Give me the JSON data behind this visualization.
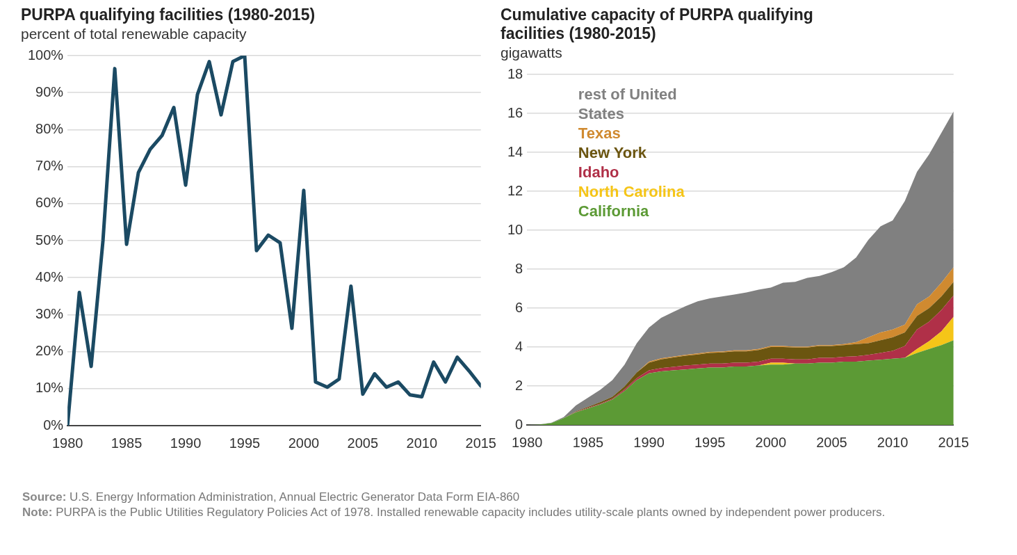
{
  "chart_data": [
    {
      "type": "line",
      "title": "PURPA qualifying facilities (1980-2015)",
      "subtitle": "percent of total renewable capacity",
      "x": [
        1980,
        1981,
        1982,
        1983,
        1984,
        1985,
        1986,
        1987,
        1988,
        1989,
        1990,
        1991,
        1992,
        1993,
        1994,
        1995,
        1996,
        1997,
        1998,
        1999,
        2000,
        2001,
        2002,
        2003,
        2004,
        2005,
        2006,
        2007,
        2008,
        2009,
        2010,
        2011,
        2012,
        2013,
        2014,
        2015
      ],
      "series": [
        {
          "color": "#1b4a63",
          "values": [
            0,
            36,
            16,
            50,
            96.5,
            49,
            68.4,
            74.7,
            78.4,
            86,
            65,
            89.5,
            98.4,
            84,
            98.4,
            100,
            47.3,
            51.5,
            49.4,
            26.3,
            63.6,
            11.8,
            10.4,
            12.6,
            37.7,
            8.5,
            14,
            10.4,
            11.8,
            8.3,
            7.8,
            17.2,
            11.8,
            18.5,
            14.8,
            10.7
          ]
        }
      ],
      "xlim": [
        1980,
        2015
      ],
      "xticks": [
        1980,
        1985,
        1990,
        1995,
        2000,
        2005,
        2010,
        2015
      ],
      "ylim": [
        0,
        100
      ],
      "yticks": [
        {
          "value": 0,
          "label": "0%"
        },
        {
          "value": 10,
          "label": "10%"
        },
        {
          "value": 20,
          "label": "20%"
        },
        {
          "value": 30,
          "label": "30%"
        },
        {
          "value": 40,
          "label": "40%"
        },
        {
          "value": 50,
          "label": "50%"
        },
        {
          "value": 60,
          "label": "60%"
        },
        {
          "value": 70,
          "label": "70%"
        },
        {
          "value": 80,
          "label": "80%"
        },
        {
          "value": 90,
          "label": "90%"
        },
        {
          "value": 100,
          "label": "100%"
        }
      ],
      "grid": "y",
      "marker": "none",
      "line_style": "solid",
      "annotations": [
        "Source: U.S. Energy Information Administration, Annual Electric Generator Data Form EIA-860",
        "Note: PURPA is the Public Utilities Regulatory Policies Act of 1978. Installed renewable capacity includes utility-scale plants owned by independent power producers."
      ]
    },
    {
      "type": "area",
      "title": "Cumulative capacity of PURPA qualifying facilities (1980-2015)",
      "subtitle": "gigawatts",
      "stacked": true,
      "x": [
        1980,
        1981,
        1982,
        1983,
        1984,
        1985,
        1986,
        1987,
        1988,
        1989,
        1990,
        1991,
        1992,
        1993,
        1994,
        1995,
        1996,
        1997,
        1998,
        1999,
        2000,
        2001,
        2002,
        2003,
        2004,
        2005,
        2006,
        2007,
        2008,
        2009,
        2010,
        2011,
        2012,
        2013,
        2014,
        2015
      ],
      "series": [
        {
          "name": "California",
          "color": "#5c9a35",
          "values": [
            0,
            0.02,
            0.1,
            0.35,
            0.65,
            0.85,
            1.05,
            1.3,
            1.75,
            2.3,
            2.65,
            2.75,
            2.8,
            2.85,
            2.9,
            2.95,
            2.95,
            3.0,
            3.0,
            3.05,
            3.1,
            3.1,
            3.15,
            3.15,
            3.2,
            3.2,
            3.25,
            3.25,
            3.3,
            3.35,
            3.4,
            3.45,
            3.7,
            3.9,
            4.1,
            4.35
          ]
        },
        {
          "name": "North Carolina",
          "color": "#f5c518",
          "values": [
            0,
            0,
            0,
            0,
            0,
            0,
            0,
            0,
            0,
            0,
            0,
            0,
            0,
            0,
            0,
            0,
            0,
            0,
            0,
            0,
            0.1,
            0.1,
            0,
            0,
            0,
            0,
            0,
            0,
            0,
            0,
            0,
            0,
            0.2,
            0.4,
            0.7,
            1.2
          ]
        },
        {
          "name": "Idaho",
          "color": "#b03048",
          "values": [
            0,
            0,
            0,
            0,
            0.02,
            0.03,
            0.04,
            0.05,
            0.08,
            0.1,
            0.15,
            0.17,
            0.18,
            0.2,
            0.2,
            0.2,
            0.2,
            0.2,
            0.2,
            0.2,
            0.2,
            0.2,
            0.22,
            0.22,
            0.25,
            0.25,
            0.25,
            0.28,
            0.3,
            0.35,
            0.4,
            0.6,
            1.0,
            1.0,
            1.1,
            1.1
          ]
        },
        {
          "name": "New York",
          "color": "#6b5510",
          "values": [
            0,
            0,
            0,
            0,
            0.03,
            0.05,
            0.08,
            0.1,
            0.15,
            0.3,
            0.4,
            0.45,
            0.48,
            0.5,
            0.52,
            0.55,
            0.57,
            0.58,
            0.58,
            0.6,
            0.6,
            0.6,
            0.6,
            0.6,
            0.6,
            0.6,
            0.6,
            0.62,
            0.6,
            0.65,
            0.7,
            0.7,
            0.7,
            0.7,
            0.7,
            0.7
          ]
        },
        {
          "name": "Texas",
          "color": "#d08a30",
          "values": [
            0,
            0,
            0,
            0,
            0,
            0,
            0,
            0,
            0,
            0,
            0.05,
            0.05,
            0.05,
            0.05,
            0.05,
            0.05,
            0.05,
            0.05,
            0.05,
            0.05,
            0.05,
            0.05,
            0.05,
            0.05,
            0.05,
            0.05,
            0.05,
            0.1,
            0.3,
            0.4,
            0.4,
            0.4,
            0.6,
            0.6,
            0.7,
            0.75
          ]
        },
        {
          "name": "rest of United States",
          "color": "#808080",
          "values": [
            0,
            0.01,
            0.02,
            0.05,
            0.3,
            0.47,
            0.63,
            0.85,
            1.12,
            1.5,
            1.75,
            2.08,
            2.29,
            2.5,
            2.68,
            2.75,
            2.83,
            2.87,
            2.97,
            3.05,
            3.0,
            3.25,
            3.33,
            3.53,
            3.55,
            3.75,
            3.95,
            4.35,
            5.0,
            5.45,
            5.6,
            6.35,
            6.8,
            7.3,
            7.7,
            8.0
          ]
        }
      ],
      "xlim": [
        1980,
        2015
      ],
      "xticks": [
        1980,
        1985,
        1990,
        1995,
        2000,
        2005,
        2010,
        2015
      ],
      "ylim": [
        0,
        18
      ],
      "yticks": [
        0,
        2,
        4,
        6,
        8,
        10,
        12,
        14,
        16,
        18
      ],
      "grid": "y",
      "legend": "top left"
    }
  ]
}
